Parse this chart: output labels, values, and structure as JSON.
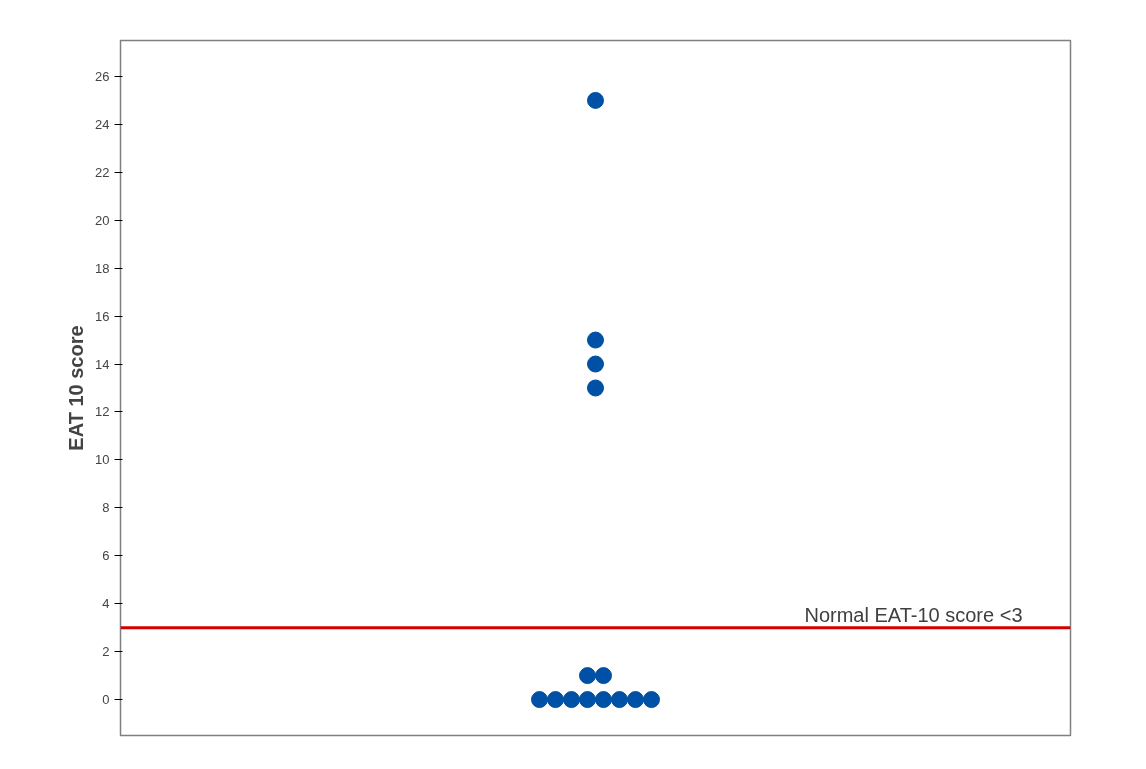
{
  "chart_data": {
    "type": "scatter",
    "ylabel": "EAT 10 score",
    "categories": [
      null
    ],
    "series": [
      {
        "color": "#0050a5",
        "x": [
          null,
          null,
          null,
          null,
          null,
          null,
          null,
          null,
          null,
          null,
          null,
          null,
          null,
          null
        ],
        "values": [
          25,
          15,
          14,
          13,
          1,
          1,
          0,
          0,
          0,
          0,
          0,
          0,
          0,
          0
        ]
      }
    ],
    "ylim": [
      -1.5,
      27.5
    ],
    "yticks": [
      0,
      2,
      4,
      6,
      8,
      10,
      12,
      14,
      16,
      18,
      20,
      22,
      24,
      26
    ],
    "tick_labels": "y",
    "grid": false,
    "marker": "circle",
    "ref_lines": [
      {
        "axis": "y",
        "value": 3,
        "label": "Normal EAT-10 score <3",
        "color": "#d40000"
      }
    ]
  }
}
